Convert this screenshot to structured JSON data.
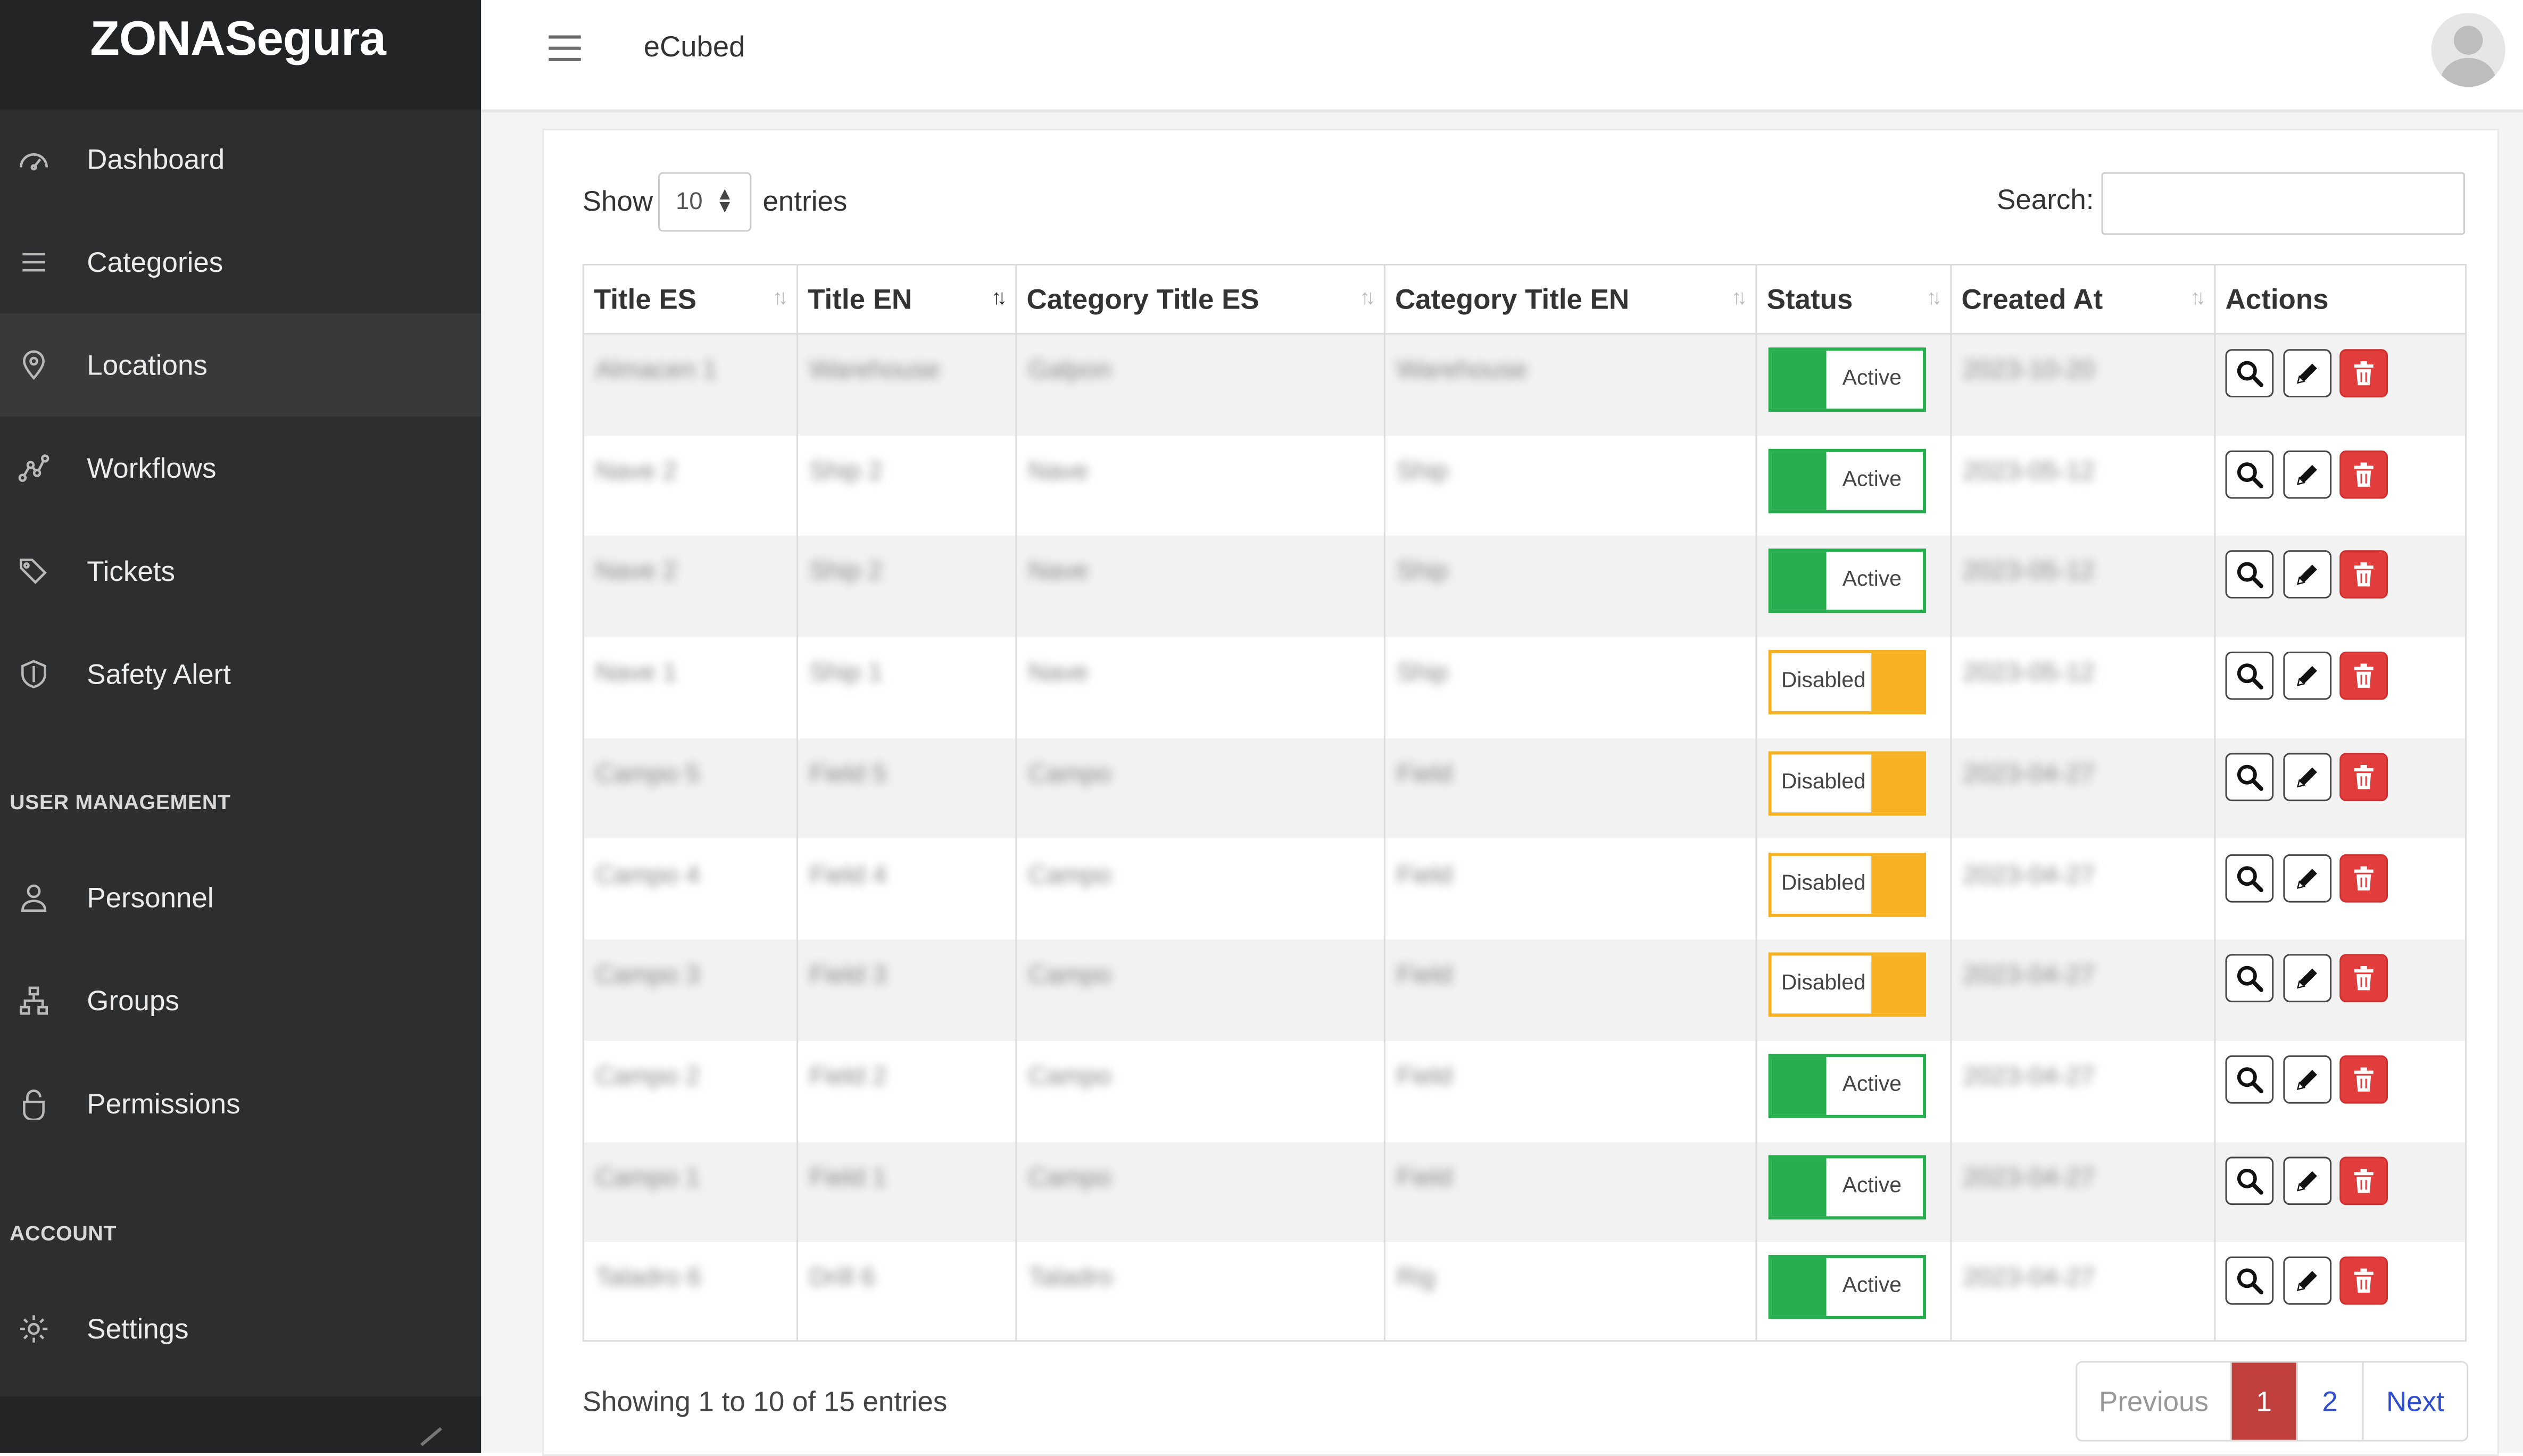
{
  "app": {
    "brand": "ZONASegura",
    "header_title": "eCubed"
  },
  "sidebar": {
    "items": [
      {
        "label": "Dashboard",
        "icon": "dashboard-icon"
      },
      {
        "label": "Categories",
        "icon": "menu-icon"
      },
      {
        "label": "Locations",
        "icon": "location-pin-icon",
        "active": true
      },
      {
        "label": "Workflows",
        "icon": "workflow-icon"
      },
      {
        "label": "Tickets",
        "icon": "tags-icon"
      },
      {
        "label": "Safety Alert",
        "icon": "shield-icon"
      }
    ],
    "user_section": "USER MANAGEMENT",
    "user_items": [
      {
        "label": "Personnel",
        "icon": "person-icon"
      },
      {
        "label": "Groups",
        "icon": "groups-icon"
      },
      {
        "label": "Permissions",
        "icon": "lock-icon"
      }
    ],
    "account_section": "ACCOUNT",
    "account_items": [
      {
        "label": "Settings",
        "icon": "gear-icon"
      }
    ]
  },
  "controls": {
    "show_label": "Show",
    "entries_value": "10",
    "entries_label": "entries",
    "search_label": "Search:",
    "search_value": ""
  },
  "table": {
    "columns": [
      "Title ES",
      "Title EN",
      "Category Title ES",
      "Category Title EN",
      "Status",
      "Created At",
      "Actions"
    ],
    "sorted_column": "Title EN",
    "rows": [
      {
        "title_es": "Almacen 1",
        "title_en": "Warehouse",
        "cat_es": "Galpon",
        "cat_en": "Warehouse",
        "status": "Active",
        "created": "2023-10-20"
      },
      {
        "title_es": "Nave 2",
        "title_en": "Ship 2",
        "cat_es": "Nave",
        "cat_en": "Ship",
        "status": "Active",
        "created": "2023-05-12"
      },
      {
        "title_es": "Nave 2",
        "title_en": "Ship 2",
        "cat_es": "Nave",
        "cat_en": "Ship",
        "status": "Active",
        "created": "2023-05-12"
      },
      {
        "title_es": "Nave 1",
        "title_en": "Ship 1",
        "cat_es": "Nave",
        "cat_en": "Ship",
        "status": "Disabled",
        "created": "2023-05-12"
      },
      {
        "title_es": "Campo 5",
        "title_en": "Field 5",
        "cat_es": "Campo",
        "cat_en": "Field",
        "status": "Disabled",
        "created": "2023-04-27"
      },
      {
        "title_es": "Campo 4",
        "title_en": "Field 4",
        "cat_es": "Campo",
        "cat_en": "Field",
        "status": "Disabled",
        "created": "2023-04-27"
      },
      {
        "title_es": "Campo 3",
        "title_en": "Field 3",
        "cat_es": "Campo",
        "cat_en": "Field",
        "status": "Disabled",
        "created": "2023-04-27"
      },
      {
        "title_es": "Campo 2",
        "title_en": "Field 2",
        "cat_es": "Campo",
        "cat_en": "Field",
        "status": "Active",
        "created": "2023-04-27"
      },
      {
        "title_es": "Campo 1",
        "title_en": "Field 1",
        "cat_es": "Campo",
        "cat_en": "Field",
        "status": "Active",
        "created": "2023-04-27"
      },
      {
        "title_es": "Taladro 6",
        "title_en": "Drill 6",
        "cat_es": "Taladro",
        "cat_en": "Rig",
        "status": "Active",
        "created": "2023-04-27"
      }
    ],
    "actions": [
      "search-icon",
      "pencil-icon",
      "trash-icon"
    ]
  },
  "footer": {
    "info": "Showing 1 to 10 of 15 entries",
    "previous": "Previous",
    "pages": [
      "1",
      "2"
    ],
    "current_page": "1",
    "next": "Next"
  },
  "colors": {
    "sidebar": "#2d2e30",
    "active_status": "#27ae4f",
    "disabled_status": "#f7b224",
    "delete": "#e23d3d",
    "pagination_current": "#c0403d",
    "link": "#2d4ccf"
  }
}
